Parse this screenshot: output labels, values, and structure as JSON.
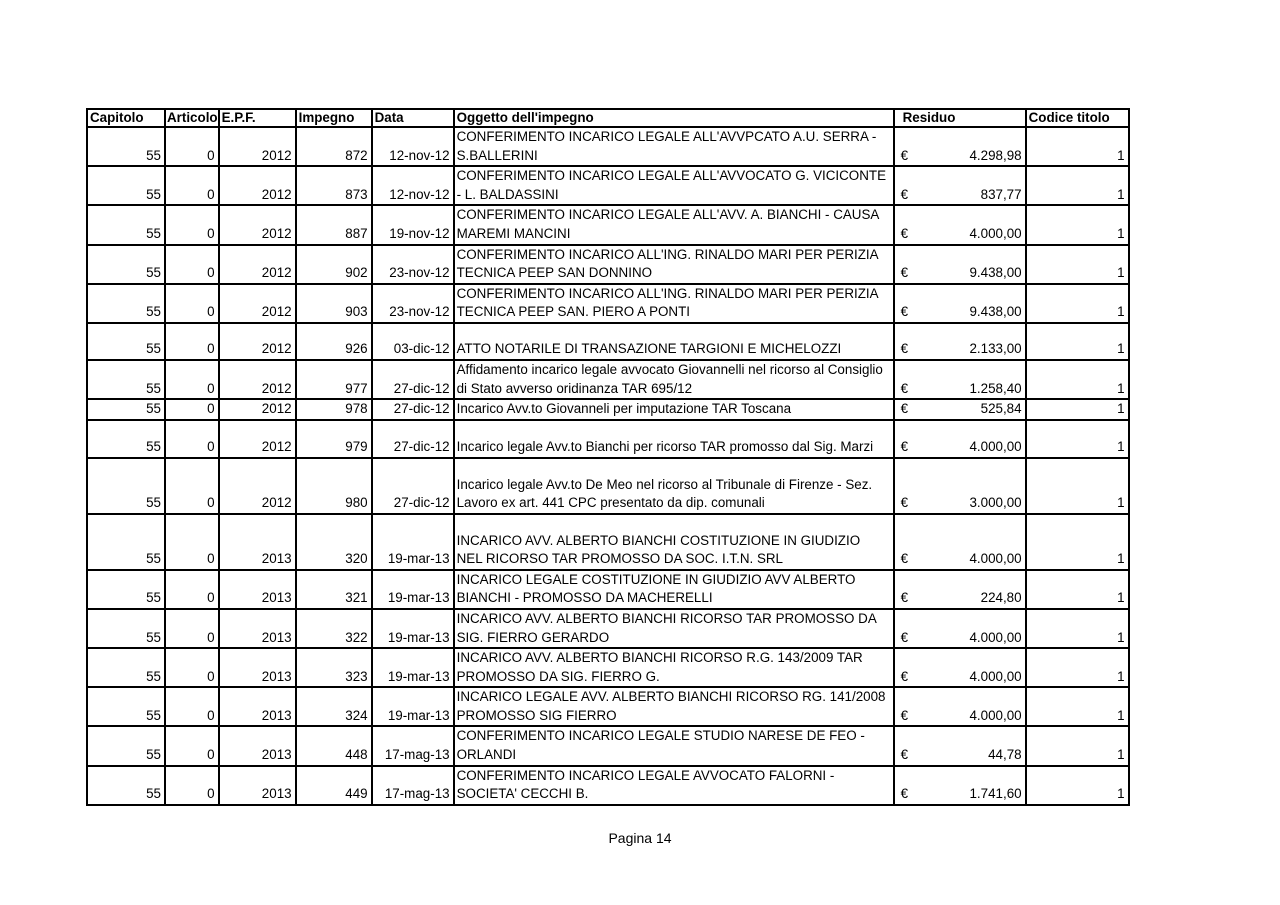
{
  "table": {
    "headers": [
      "Capitolo",
      "Articolo",
      "E.P.F.",
      "Impegno",
      "Data",
      "Oggetto dell'impegno",
      "Residuo",
      "Codice titolo"
    ],
    "currency_symbol": "€",
    "rows": [
      {
        "capitolo": "55",
        "articolo": "0",
        "epf": "2012",
        "impegno": "872",
        "data": "12-nov-12",
        "oggetto": "CONFERIMENTO INCARICO LEGALE ALL'AVVPCATO A.U. SERRA - S.BALLERINI",
        "residuo": "4.298,98",
        "codice": "1"
      },
      {
        "capitolo": "55",
        "articolo": "0",
        "epf": "2012",
        "impegno": "873",
        "data": "12-nov-12",
        "oggetto": "CONFERIMENTO INCARICO LEGALE ALL'AVVOCATO G. VICICONTE - L. BALDASSINI",
        "residuo": "837,77",
        "codice": "1"
      },
      {
        "capitolo": "55",
        "articolo": "0",
        "epf": "2012",
        "impegno": "887",
        "data": "19-nov-12",
        "oggetto": "CONFERIMENTO INCARICO LEGALE ALL'AVV. A. BIANCHI - CAUSA MAREMI MANCINI",
        "residuo": "4.000,00",
        "codice": "1"
      },
      {
        "capitolo": "55",
        "articolo": "0",
        "epf": "2012",
        "impegno": "902",
        "data": "23-nov-12",
        "oggetto": "CONFERIMENTO INCARICO ALL'ING. RINALDO MARI PER PERIZIA TECNICA PEEP SAN DONNINO",
        "residuo": "9.438,00",
        "codice": "1"
      },
      {
        "capitolo": "55",
        "articolo": "0",
        "epf": "2012",
        "impegno": "903",
        "data": "23-nov-12",
        "oggetto": "CONFERIMENTO INCARICO ALL'ING. RINALDO MARI PER PERIZIA TECNICA PEEP SAN. PIERO A PONTI",
        "residuo": "9.438,00",
        "codice": "1"
      },
      {
        "capitolo": "55",
        "articolo": "0",
        "epf": "2012",
        "impegno": "926",
        "data": "03-dic-12",
        "oggetto": "ATTO NOTARILE DI TRANSAZIONE TARGIONI E MICHELOZZI",
        "residuo": "2.133,00",
        "codice": "1"
      },
      {
        "capitolo": "55",
        "articolo": "0",
        "epf": "2012",
        "impegno": "977",
        "data": "27-dic-12",
        "oggetto": "Affidamento incarico legale avvocato Giovannelli nel ricorso al Consiglio di Stato avverso oridinanza TAR 695/12",
        "residuo": "1.258,40",
        "codice": "1"
      },
      {
        "capitolo": "55",
        "articolo": "0",
        "epf": "2012",
        "impegno": "978",
        "data": "27-dic-12",
        "oggetto": "Incarico Avv.to Giovanneli per imputazione TAR Toscana",
        "residuo": "525,84",
        "codice": "1"
      },
      {
        "capitolo": "55",
        "articolo": "0",
        "epf": "2012",
        "impegno": "979",
        "data": "27-dic-12",
        "oggetto": "Incarico legale Avv.to Bianchi per ricorso TAR promosso dal Sig. Marzi",
        "residuo": "4.000,00",
        "codice": "1"
      },
      {
        "capitolo": "55",
        "articolo": "0",
        "epf": "2012",
        "impegno": "980",
        "data": "27-dic-12",
        "oggetto": "Incarico legale Avv.to De Meo nel ricorso al Tribunale di Firenze - Sez. Lavoro ex art. 441 CPC presentato da dip. comunali",
        "residuo": "3.000,00",
        "codice": "1"
      },
      {
        "capitolo": "55",
        "articolo": "0",
        "epf": "2013",
        "impegno": "320",
        "data": "19-mar-13",
        "oggetto": "INCARICO AVV. ALBERTO BIANCHI COSTITUZIONE IN GIUDIZIO NEL RICORSO TAR PROMOSSO DA SOC. I.T.N. SRL",
        "residuo": "4.000,00",
        "codice": "1"
      },
      {
        "capitolo": "55",
        "articolo": "0",
        "epf": "2013",
        "impegno": "321",
        "data": "19-mar-13",
        "oggetto": "INCARICO LEGALE COSTITUZIONE IN GIUDIZIO AVV ALBERTO BIANCHI - PROMOSSO DA MACHERELLI",
        "residuo": "224,80",
        "codice": "1"
      },
      {
        "capitolo": "55",
        "articolo": "0",
        "epf": "2013",
        "impegno": "322",
        "data": "19-mar-13",
        "oggetto": "INCARICO AVV. ALBERTO BIANCHI RICORSO TAR PROMOSSO DA SIG. FIERRO GERARDO",
        "residuo": "4.000,00",
        "codice": "1"
      },
      {
        "capitolo": "55",
        "articolo": "0",
        "epf": "2013",
        "impegno": "323",
        "data": "19-mar-13",
        "oggetto": "INCARICO AVV. ALBERTO BIANCHI RICORSO R.G. 143/2009 TAR PROMOSSO DA SIG. FIERRO G.",
        "residuo": "4.000,00",
        "codice": "1"
      },
      {
        "capitolo": "55",
        "articolo": "0",
        "epf": "2013",
        "impegno": "324",
        "data": "19-mar-13",
        "oggetto": "INCARICO LEGALE AVV. ALBERTO BIANCHI RICORSO RG. 141/2008 PROMOSSO SIG FIERRO",
        "residuo": "4.000,00",
        "codice": "1"
      },
      {
        "capitolo": "55",
        "articolo": "0",
        "epf": "2013",
        "impegno": "448",
        "data": "17-mag-13",
        "oggetto": "CONFERIMENTO INCARICO LEGALE STUDIO NARESE DE FEO - ORLANDI",
        "residuo": "44,78",
        "codice": "1"
      },
      {
        "capitolo": "55",
        "articolo": "0",
        "epf": "2013",
        "impegno": "449",
        "data": "17-mag-13",
        "oggetto": "CONFERIMENTO INCARICO LEGALE AVVOCATO FALORNI - SOCIETA' CECCHI B.",
        "residuo": "1.741,60",
        "codice": "1"
      }
    ]
  },
  "footer": {
    "page_label": "Pagina 14"
  }
}
